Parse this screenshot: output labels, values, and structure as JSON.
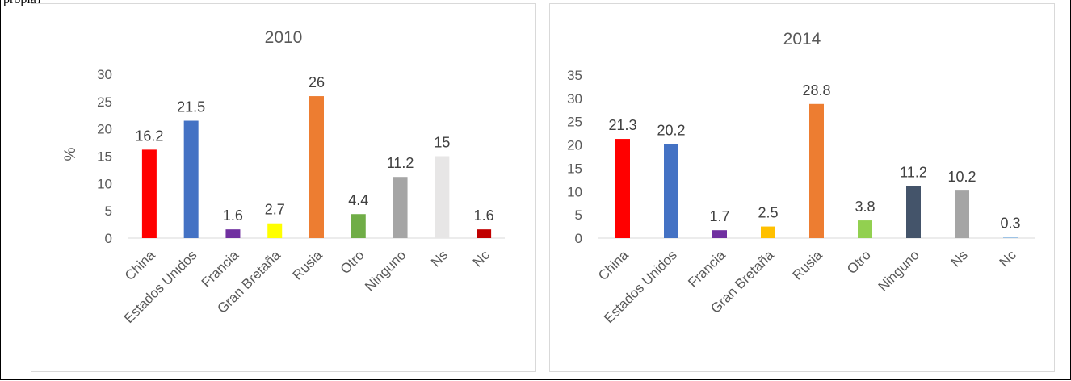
{
  "page": {
    "top_text": "propia)"
  },
  "chart_data": [
    {
      "type": "bar",
      "title": "2010",
      "ylabel": "%",
      "xlabel": "",
      "ylim": [
        0,
        30
      ],
      "yticks": [
        0,
        5,
        10,
        15,
        20,
        25,
        30
      ],
      "grid": false,
      "legend": "none",
      "categories": [
        "China",
        "Estados Unidos",
        "Francia",
        "Gran Bretaña",
        "Rusia",
        "Otro",
        "Ninguno",
        "Ns",
        "Nc"
      ],
      "values": [
        16.2,
        21.5,
        1.6,
        2.7,
        26,
        4.4,
        11.2,
        15,
        1.6
      ],
      "value_labels": [
        "16.2",
        "21.5",
        "1.6",
        "2.7",
        "26",
        "4.4",
        "11.2",
        "15",
        "1.6"
      ],
      "colors": [
        "#ff0000",
        "#4472c4",
        "#7030a0",
        "#ffff00",
        "#ed7d31",
        "#70ad47",
        "#a5a5a5",
        "#e7e6e6",
        "#c00000"
      ]
    },
    {
      "type": "bar",
      "title": "2014",
      "ylabel": "",
      "xlabel": "",
      "ylim": [
        0,
        35
      ],
      "yticks": [
        0,
        5,
        10,
        15,
        20,
        25,
        30,
        35
      ],
      "grid": false,
      "legend": "none",
      "categories": [
        "China",
        "Estados Unidos",
        "Francia",
        "Gran Bretaña",
        "Rusia",
        "Otro",
        "Ninguno",
        "Ns",
        "Nc"
      ],
      "values": [
        21.3,
        20.2,
        1.7,
        2.5,
        28.8,
        3.8,
        11.2,
        10.2,
        0.3
      ],
      "value_labels": [
        "21.3",
        "20.2",
        "1.7",
        "2.5",
        "28.8",
        "3.8",
        "11.2",
        "10.2",
        "0.3"
      ],
      "colors": [
        "#ff0000",
        "#4472c4",
        "#7030a0",
        "#ffc000",
        "#ed7d31",
        "#92d050",
        "#44546a",
        "#a5a5a5",
        "#9dc3e6"
      ]
    }
  ]
}
